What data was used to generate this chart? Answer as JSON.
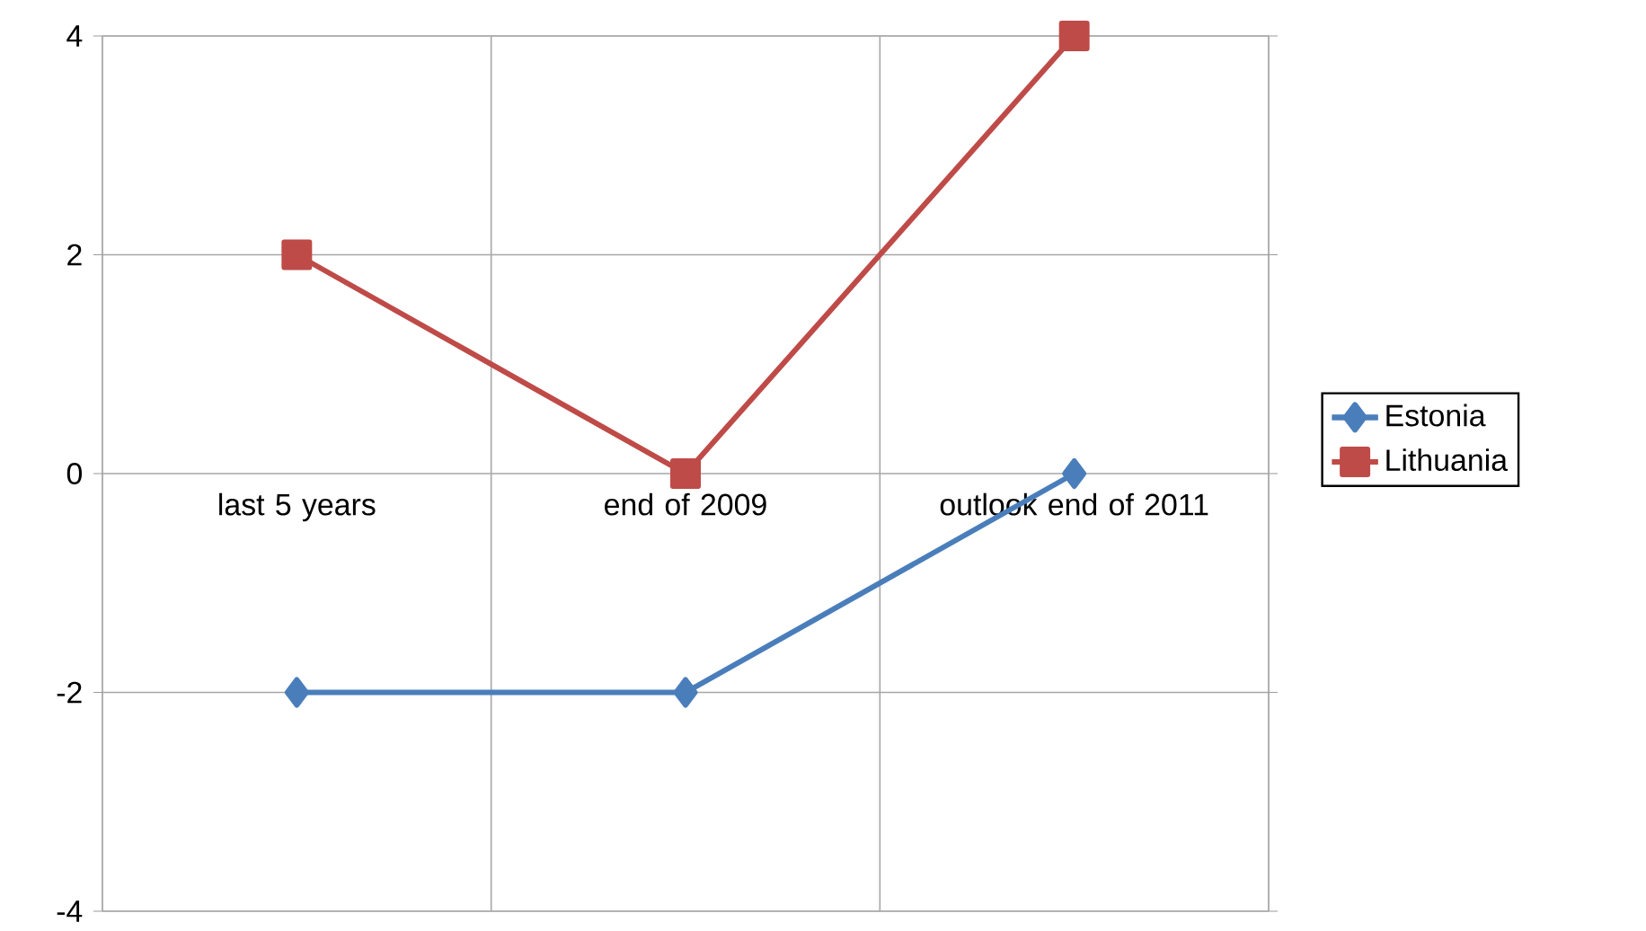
{
  "chart_data": {
    "type": "line",
    "categories": [
      "last 5 years",
      "end of 2009",
      "outlook end of 2011"
    ],
    "series": [
      {
        "name": "Estonia",
        "color": "#4a7ebb",
        "values": [
          -2,
          -2,
          0
        ],
        "marker": "diamond"
      },
      {
        "name": "Lithuania",
        "color": "#be4b48",
        "values": [
          2,
          0,
          4
        ],
        "marker": "square"
      }
    ],
    "ylim": [
      -4,
      4
    ],
    "yticks": [
      -4,
      -2,
      0,
      2,
      4
    ],
    "grid": true,
    "legend": "right"
  }
}
